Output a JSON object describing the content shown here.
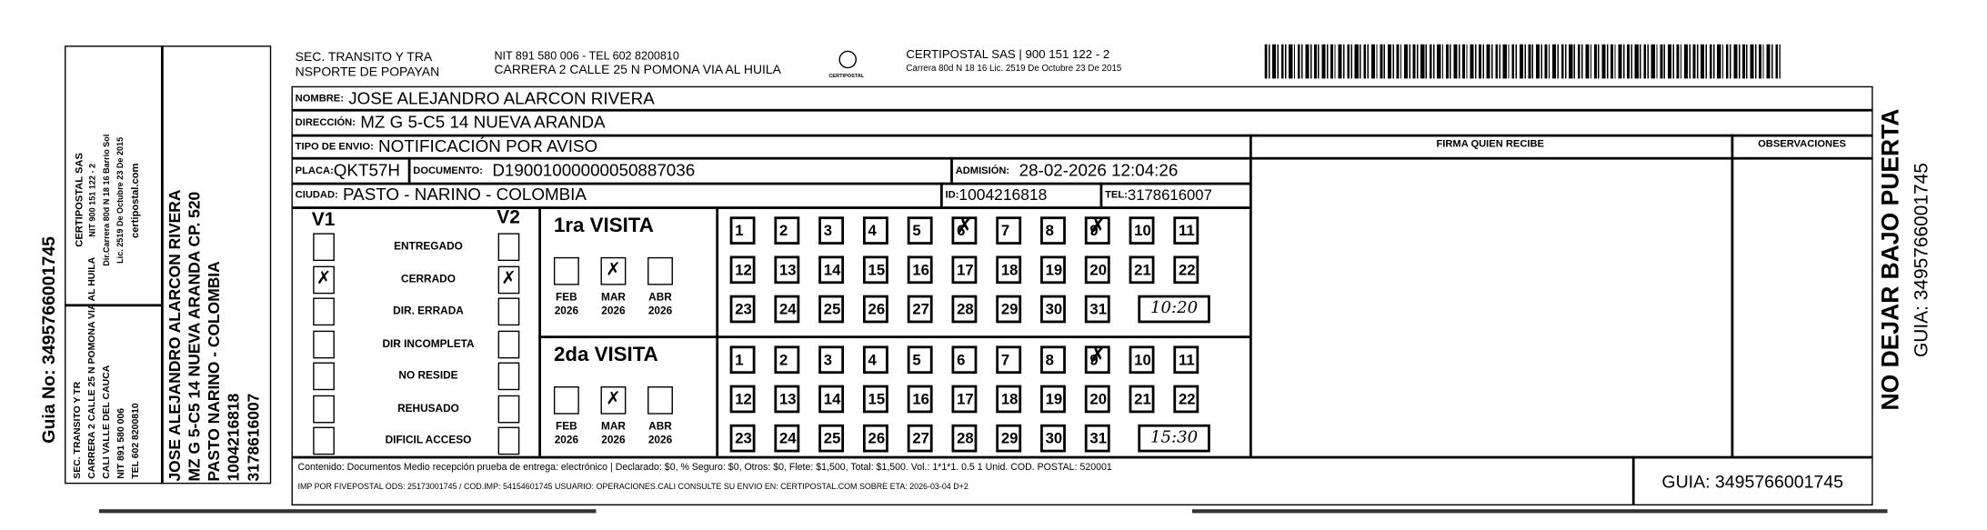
{
  "stub": {
    "guia": "Guia No: 3495766001745",
    "sender_lines": [
      "SEC. TRANSITO Y TR",
      "CARRERA 2 CALLE 25 N POMONA VIA AL HUILA",
      "CALI VALLE DEL CAUCA",
      "NIT 891 580 006",
      "TEL 602 8200810"
    ],
    "carrier_lines": [
      "CERTIPOSTAL SAS",
      "NIT 900 151 122 - 2",
      "Dir.Carrera 80d N 18 16 Barrio Sol",
      "Lic. 2519 De Octubre 23 De 2015",
      "certipostal.com"
    ],
    "recipient_lines": [
      "JOSE ALEJANDRO ALARCON RIVERA",
      "MZ G 5-C5 14 NUEVA ARANDA CP. 520",
      "PASTO NARINO - COLOMBIA",
      "1004216818",
      "3178616007"
    ]
  },
  "header": {
    "sender": [
      "SEC. TRANSITO Y TRA",
      "NSPORTE DE POPAYAN"
    ],
    "sender_info": [
      "NIT 891 580 006 - TEL 602 8200810",
      "CARRERA 2 CALLE 25 N POMONA VIA AL HUILA"
    ],
    "logo_text": "CERTIPOSTAL",
    "carrier": [
      "CERTIPOSTAL SAS | 900 151 122 - 2",
      "Carrera 80d N 18 16  Lic. 2519 De Octubre 23 De 2015"
    ]
  },
  "form": {
    "nombre_label": "NOMBRE:",
    "nombre": "JOSE ALEJANDRO ALARCON RIVERA",
    "direccion_label": "DIRECCIÓN:",
    "direccion": "MZ G 5-C5 14 NUEVA ARANDA",
    "tipo_label": "TIPO DE ENVIO:",
    "tipo": "NOTIFICACIÓN POR AVISO",
    "placa_label": "PLACA:",
    "placa": "QKT57H",
    "documento_label": "DOCUMENTO:",
    "documento": "D19001000000050887036",
    "admision_label": "ADMISIÓN:",
    "admision": "28-02-2026 12:04:26",
    "ciudad_label": "CIUDAD:",
    "ciudad": "PASTO - NARINO - COLOMBIA",
    "id_label": "ID:",
    "id": "1004216818",
    "tel_label": "TEL:",
    "tel": "3178616007",
    "firma_label": "FIRMA QUIEN RECIBE",
    "observaciones_label": "OBSERVACIONES"
  },
  "status": {
    "v1_label": "V1",
    "v2_label": "V2",
    "options": [
      {
        "label": "ENTREGADO",
        "v1": false,
        "v2": false
      },
      {
        "label": "CERRADO",
        "v1": true,
        "v2": true
      },
      {
        "label": "DIR. ERRADA",
        "v1": false,
        "v2": false
      },
      {
        "label": "DIR INCOMPLETA",
        "v1": false,
        "v2": false
      },
      {
        "label": "NO RESIDE",
        "v1": false,
        "v2": false
      },
      {
        "label": "REHUSADO",
        "v1": false,
        "v2": false
      },
      {
        "label": "DIFICIL ACCESO",
        "v1": false,
        "v2": false
      }
    ]
  },
  "visits": [
    {
      "label": "1ra VISITA",
      "months": [
        {
          "m": "FEB",
          "y": "2026",
          "checked": false
        },
        {
          "m": "MAR",
          "y": "2026",
          "checked": true
        },
        {
          "m": "ABR",
          "y": "2026",
          "checked": false
        }
      ],
      "checked_days": [
        6,
        9
      ],
      "time": "10:20"
    },
    {
      "label": "2da VISITA",
      "months": [
        {
          "m": "FEB",
          "y": "2026",
          "checked": false
        },
        {
          "m": "MAR",
          "y": "2026",
          "checked": true
        },
        {
          "m": "ABR",
          "y": "2026",
          "checked": false
        }
      ],
      "checked_days": [
        9
      ],
      "time": "15:30"
    }
  ],
  "footer": {
    "contenido": "Contenido: Documentos Medio recepción prueba de entrega: electrónico | Declarado: $0, % Seguro: $0, Otros: $0, Flete: $1,500, Total: $1,500. Vol.: 1*1*1. 0.5  1 Unid. COD. POSTAL: 520001",
    "imp": "IMP POR FIVEPOSTAL ODS: 25173001745 / COD.IMP: 54154601745 USUARIO: OPERACIONES.CALI CONSULTE SU ENVIO EN: CERTIPOSTAL.COM SOBRE ETA: 2026-03-04 D+2",
    "guia": "GUIA: 3495766001745"
  },
  "side": {
    "warning": "NO DEJAR BAJO PUERTA",
    "guia": "GUIA: 3495766001745"
  }
}
